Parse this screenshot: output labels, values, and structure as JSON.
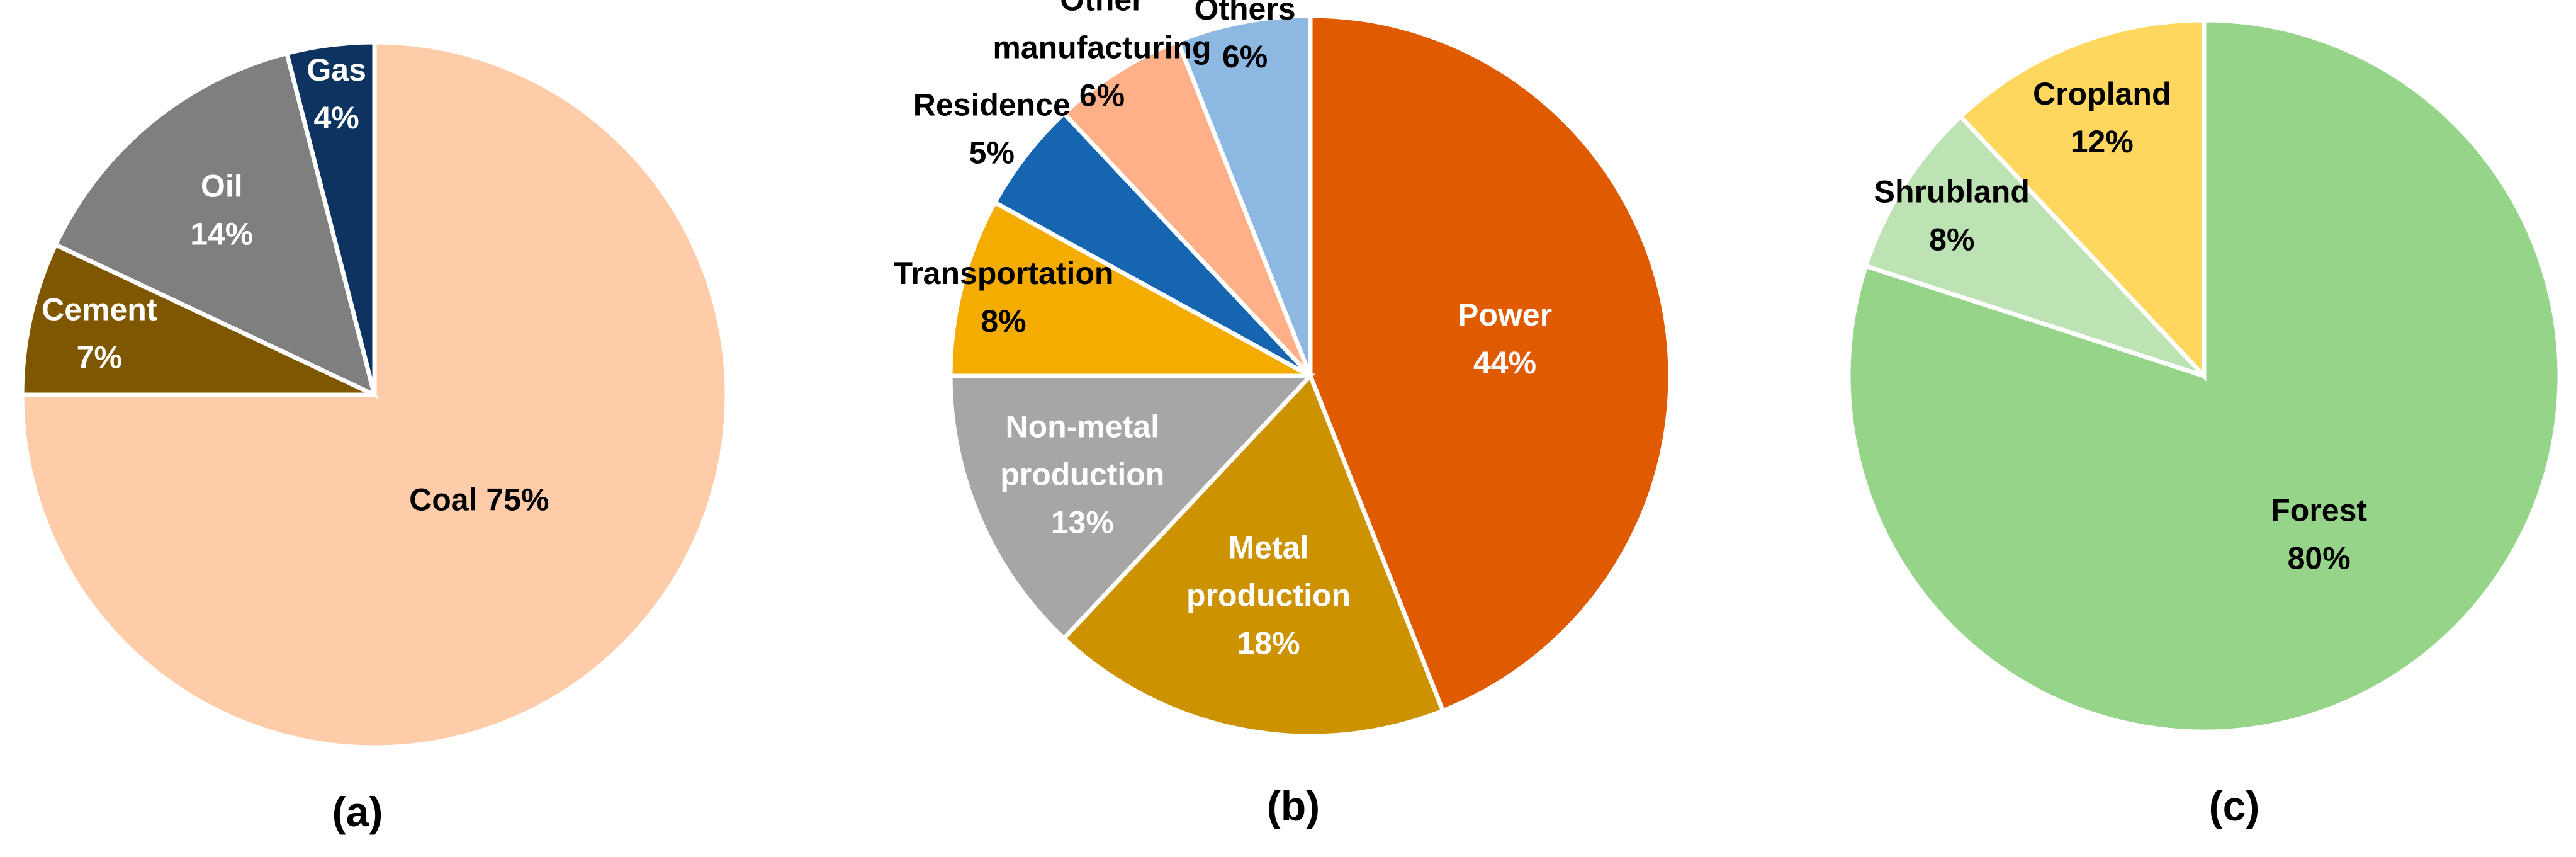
{
  "chart_data": [
    {
      "type": "pie",
      "caption": "(a)",
      "slices": [
        {
          "name": "Coal",
          "value": 75,
          "label_lines": [
            "Coal 75%"
          ],
          "color": "#FFCCAA",
          "label_color": "#000000"
        },
        {
          "name": "Cement",
          "value": 7,
          "label_lines": [
            "Cement",
            "7%"
          ],
          "color": "#7F5700",
          "label_color": "#FFFFFF"
        },
        {
          "name": "Oil",
          "value": 14,
          "label_lines": [
            "Oil",
            "14%"
          ],
          "color": "#7F7F7F",
          "label_color": "#FFFFFF"
        },
        {
          "name": "Gas",
          "value": 4,
          "label_lines": [
            "Gas",
            "4%"
          ],
          "color": "#0D3361",
          "label_color": "#FFFFFF"
        }
      ]
    },
    {
      "type": "pie",
      "caption": "(b)",
      "slices": [
        {
          "name": "Power",
          "value": 44,
          "label_lines": [
            "Power",
            "44%"
          ],
          "color": "#E05A00",
          "label_color": "#FFFFFF"
        },
        {
          "name": "Metal production",
          "value": 18,
          "label_lines": [
            "Metal",
            "production",
            "18%"
          ],
          "color": "#CC9200",
          "label_color": "#FFFFFF"
        },
        {
          "name": "Non-metal production",
          "value": 13,
          "label_lines": [
            "Non-metal",
            "production",
            "13%"
          ],
          "color": "#A6A6A6",
          "label_color": "#FFFFFF"
        },
        {
          "name": "Transportation",
          "value": 8,
          "label_lines": [
            "Transportation",
            "8%"
          ],
          "color": "#F4AC00",
          "label_color": "#000000"
        },
        {
          "name": "Residence",
          "value": 5,
          "label_lines": [
            "Residence",
            "5%"
          ],
          "color": "#1565B0",
          "label_color": "#000000"
        },
        {
          "name": "Other manufacturing",
          "value": 6,
          "label_lines": [
            "Other",
            "manufacturing",
            "6%"
          ],
          "color": "#FFB088",
          "label_color": "#000000"
        },
        {
          "name": "Others",
          "value": 6,
          "label_lines": [
            "Others",
            "6%"
          ],
          "color": "#8DB8E2",
          "label_color": "#000000"
        }
      ]
    },
    {
      "type": "pie",
      "caption": "(c)",
      "slices": [
        {
          "name": "Forest",
          "value": 80,
          "label_lines": [
            "Forest",
            "80%"
          ],
          "color": "#96D48A",
          "label_color": "#000000"
        },
        {
          "name": "Shrubland",
          "value": 8,
          "label_lines": [
            "Shrubland",
            "8%"
          ],
          "color": "#BDE3B4",
          "label_color": "#000000"
        },
        {
          "name": "Cropland",
          "value": 12,
          "label_lines": [
            "Cropland",
            "12%"
          ],
          "color": "#FFD75E",
          "label_color": "#000000"
        }
      ]
    }
  ]
}
